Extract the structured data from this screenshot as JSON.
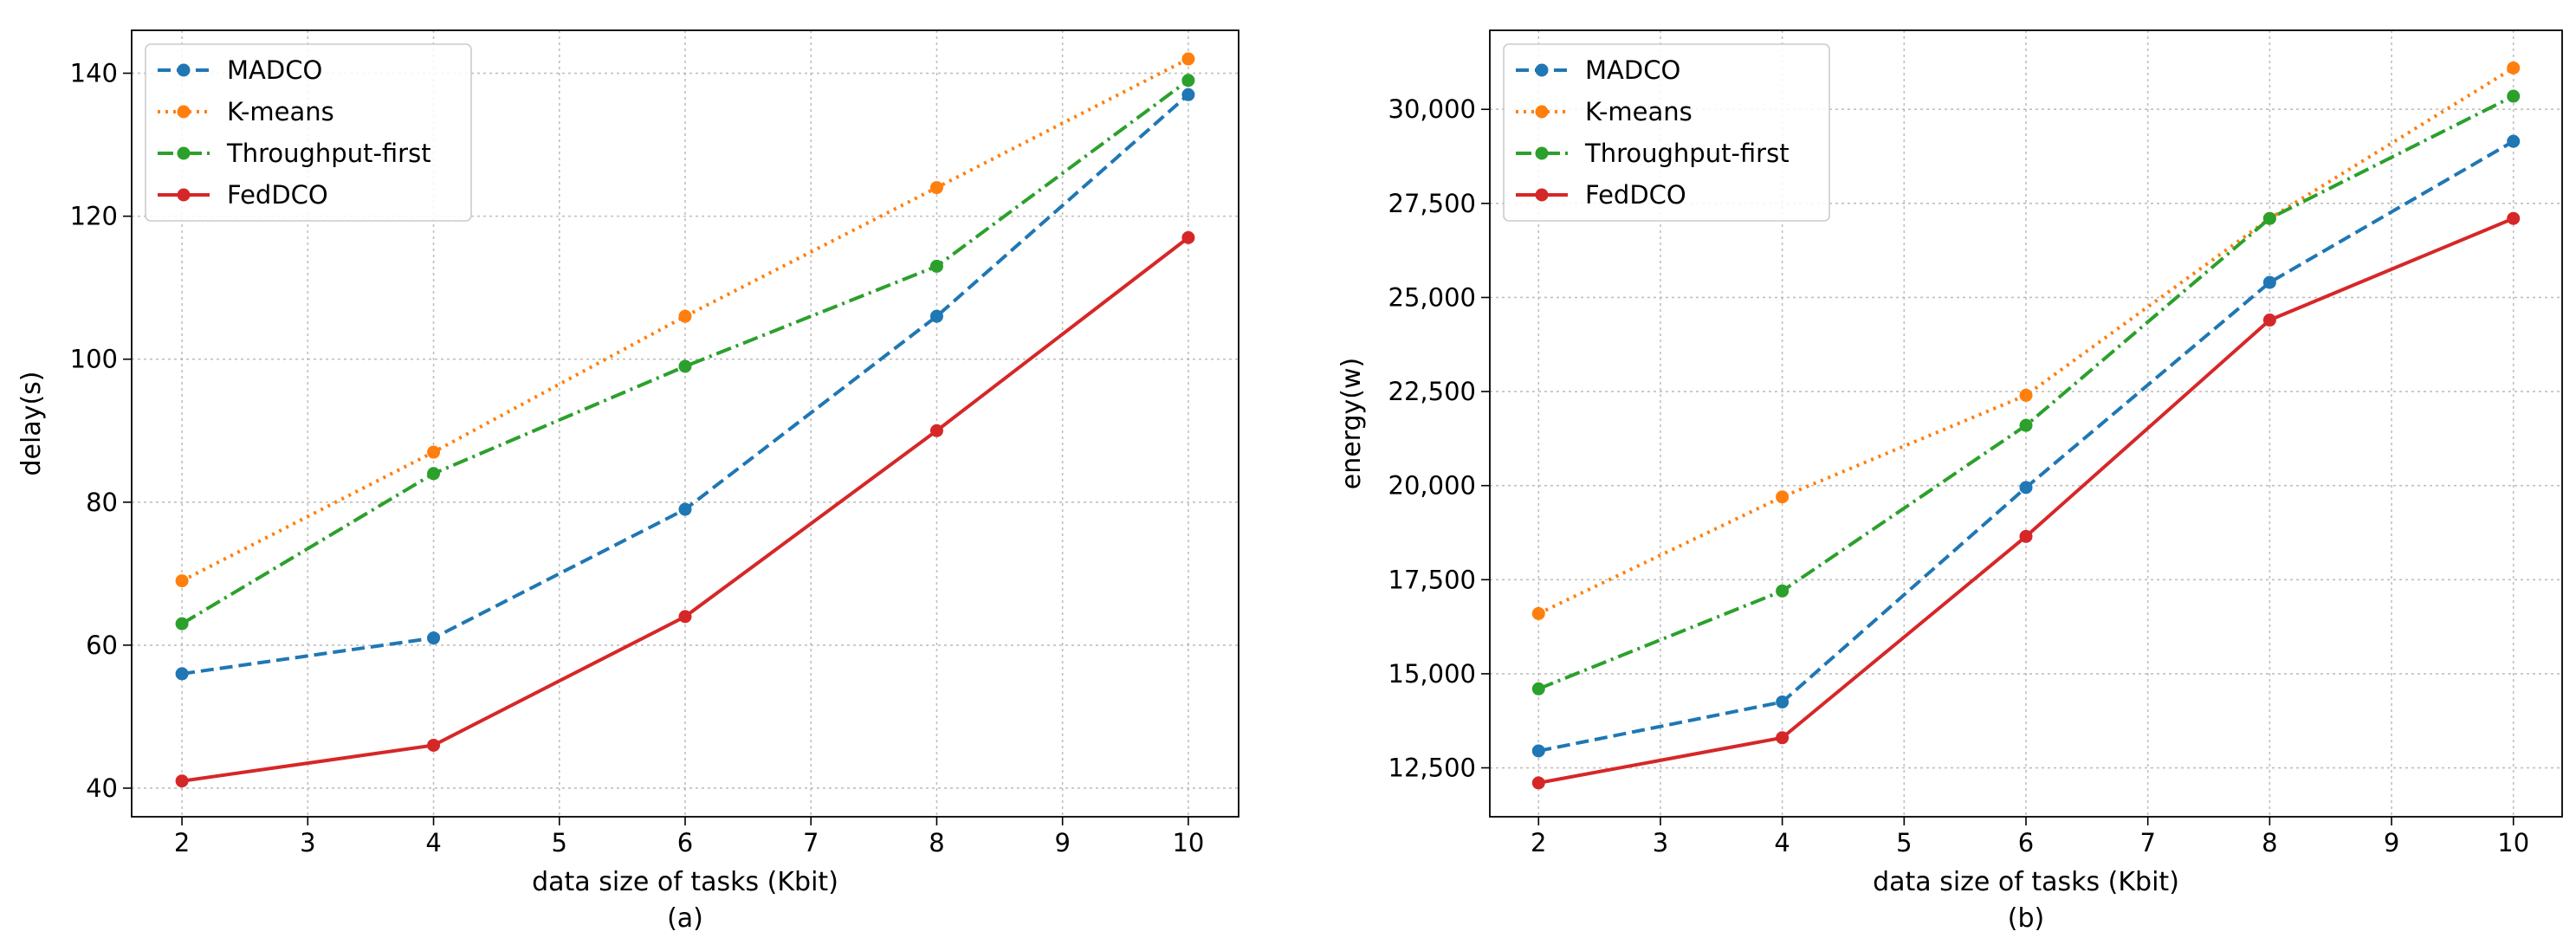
{
  "chart_data": [
    {
      "id": "a",
      "type": "line",
      "caption": "(a)",
      "xlabel": "data size of tasks (Kbit)",
      "ylabel": "delay(s)",
      "xlim": [
        1.6,
        10.4
      ],
      "ylim": [
        36,
        146
      ],
      "xticks": [
        2,
        3,
        4,
        5,
        6,
        7,
        8,
        9,
        10
      ],
      "xtick_labels": [
        "2",
        "3",
        "4",
        "5",
        "6",
        "7",
        "8",
        "9",
        "10"
      ],
      "yticks": [
        40,
        60,
        80,
        100,
        120,
        140
      ],
      "ytick_labels": [
        "40",
        "60",
        "80",
        "100",
        "120",
        "140"
      ],
      "grid": true,
      "legend_position": "top-left",
      "x": [
        2,
        4,
        6,
        8,
        10
      ],
      "series": [
        {
          "name": "MADCO",
          "color": "#1f77b4",
          "style": "dashed",
          "values": [
            56,
            61,
            79,
            106,
            137
          ]
        },
        {
          "name": "K-means",
          "color": "#ff7f0e",
          "style": "dotted",
          "values": [
            69,
            87,
            106,
            124,
            142
          ]
        },
        {
          "name": "Throughput-first",
          "color": "#2ca02c",
          "style": "dashdot",
          "values": [
            63,
            84,
            99,
            113,
            139
          ]
        },
        {
          "name": "FedDCO",
          "color": "#d62728",
          "style": "solid",
          "values": [
            41,
            46,
            64,
            90,
            117
          ]
        }
      ]
    },
    {
      "id": "b",
      "type": "line",
      "caption": "(b)",
      "xlabel": "data size of tasks (Kbit)",
      "ylabel": "energy(w)",
      "xlim": [
        1.6,
        10.4
      ],
      "ylim": [
        11200,
        32100
      ],
      "xticks": [
        2,
        3,
        4,
        5,
        6,
        7,
        8,
        9,
        10
      ],
      "xtick_labels": [
        "2",
        "3",
        "4",
        "5",
        "6",
        "7",
        "8",
        "9",
        "10"
      ],
      "yticks": [
        12500,
        15000,
        17500,
        20000,
        22500,
        25000,
        27500,
        30000
      ],
      "ytick_labels": [
        "12,500",
        "15,000",
        "17,500",
        "20,000",
        "22,500",
        "25,000",
        "27,500",
        "30,000"
      ],
      "grid": true,
      "legend_position": "top-left",
      "x": [
        2,
        4,
        6,
        8,
        10
      ],
      "series": [
        {
          "name": "MADCO",
          "color": "#1f77b4",
          "style": "dashed",
          "values": [
            12950,
            14250,
            19950,
            25400,
            29150
          ]
        },
        {
          "name": "K-means",
          "color": "#ff7f0e",
          "style": "dotted",
          "values": [
            16600,
            19700,
            22400,
            27100,
            31100
          ]
        },
        {
          "name": "Throughput-first",
          "color": "#2ca02c",
          "style": "dashdot",
          "values": [
            14600,
            17200,
            21600,
            27100,
            30350
          ]
        },
        {
          "name": "FedDCO",
          "color": "#d62728",
          "style": "solid",
          "values": [
            12100,
            13300,
            18650,
            24400,
            27100
          ]
        }
      ]
    }
  ]
}
